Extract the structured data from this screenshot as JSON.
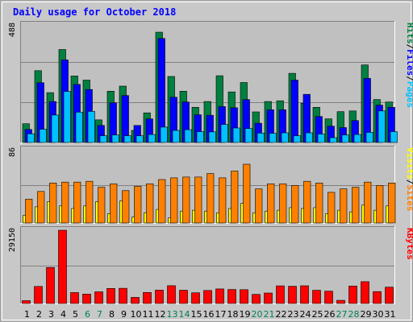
{
  "chart_data": [
    {
      "type": "bar",
      "title": "Daily usage for October 2018",
      "categories": [
        "1",
        "2",
        "3",
        "4",
        "5",
        "6",
        "7",
        "8",
        "9",
        "10",
        "11",
        "12",
        "13",
        "14",
        "15",
        "16",
        "17",
        "18",
        "19",
        "20",
        "21",
        "22",
        "23",
        "24",
        "25",
        "26",
        "27",
        "28",
        "29",
        "30",
        "31"
      ],
      "weekend_days": [
        "6",
        "7",
        "13",
        "14",
        "20",
        "21",
        "27",
        "28"
      ],
      "ymax_label": "488",
      "ylim": [
        0,
        488
      ],
      "legend": [
        "Pages",
        "Files",
        "Hits"
      ],
      "series": [
        {
          "name": "Hits",
          "color": "#008040",
          "values": [
            78,
            298,
            207,
            386,
            276,
            259,
            94,
            213,
            234,
            50,
            123,
            458,
            274,
            213,
            146,
            170,
            277,
            210,
            249,
            127,
            170,
            173,
            287,
            163,
            146,
            98,
            128,
            131,
            322,
            178,
            168
          ]
        },
        {
          "name": "Files",
          "color": "#0000ff",
          "values": [
            54,
            248,
            170,
            343,
            241,
            220,
            71,
            165,
            195,
            71,
            98,
            432,
            188,
            168,
            115,
            113,
            149,
            144,
            178,
            80,
            136,
            136,
            259,
            200,
            108,
            68,
            62,
            91,
            266,
            155,
            146
          ]
        },
        {
          "name": "Pages",
          "color": "#00c0ff",
          "values": [
            36,
            55,
            114,
            212,
            126,
            129,
            28,
            31,
            28,
            28,
            33,
            64,
            50,
            53,
            45,
            44,
            75,
            60,
            58,
            39,
            38,
            40,
            28,
            40,
            35,
            20,
            31,
            33,
            42,
            131,
            45
          ]
        }
      ]
    },
    {
      "type": "bar",
      "ymax_label": "86",
      "ylim": [
        0,
        86
      ],
      "legend": [
        "Sites",
        "Visits"
      ],
      "series": [
        {
          "name": "Visits",
          "color": "#ffff00",
          "values": [
            9,
            19,
            25,
            20,
            17,
            20,
            25,
            11,
            26,
            7,
            12,
            16,
            6,
            14,
            15,
            14,
            12,
            17,
            23,
            12,
            14,
            15,
            18,
            17,
            18,
            11,
            15,
            13,
            21,
            15,
            20
          ]
        },
        {
          "name": "Sites",
          "color": "#ff8000",
          "values": [
            28,
            37,
            47,
            48,
            48,
            49,
            42,
            46,
            38,
            43,
            46,
            51,
            53,
            54,
            54,
            58,
            53,
            61,
            69,
            40,
            46,
            46,
            44,
            49,
            47,
            36,
            40,
            42,
            48,
            44,
            47
          ]
        }
      ]
    },
    {
      "type": "bar",
      "ymax_label": "29150",
      "ylim": [
        0,
        29150
      ],
      "legend": [
        "KBytes"
      ],
      "series": [
        {
          "name": "KBytes",
          "color": "#ff0000",
          "values": [
            1130,
            6790,
            14310,
            29150,
            4370,
            3750,
            4660,
            5990,
            6070,
            2420,
            4400,
            5310,
            7080,
            5270,
            4270,
            5180,
            5790,
            5580,
            5520,
            3620,
            4180,
            7010,
            6850,
            7050,
            5260,
            4900,
            1240,
            6910,
            8690,
            4750,
            6490
          ]
        }
      ]
    }
  ]
}
